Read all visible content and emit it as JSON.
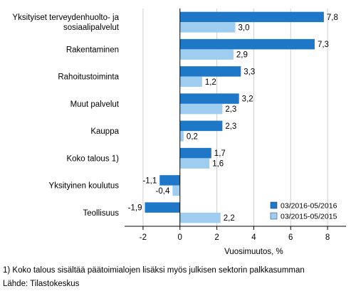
{
  "chart_data": {
    "type": "bar",
    "orientation": "horizontal",
    "categories": [
      "Yksityiset terveydenhuolto- ja sosiaalipalvelut",
      "Rakentaminen",
      "Rahoitustoiminta",
      "Muut palvelut",
      "Kauppa",
      "Koko talous 1)",
      "Yksityinen koulutus",
      "Teollisuus"
    ],
    "category_lines": [
      [
        "Yksityiset terveydenhuolto- ja",
        "sosiaalipalvelut"
      ],
      [
        "Rakentaminen"
      ],
      [
        "Rahoitustoiminta"
      ],
      [
        "Muut palvelut"
      ],
      [
        "Kauppa"
      ],
      [
        "Koko talous 1)"
      ],
      [
        "Yksityinen koulutus"
      ],
      [
        "Teollisuus"
      ]
    ],
    "series": [
      {
        "name": "03/2016-05/2016",
        "color": "#1f77c8",
        "values": [
          7.8,
          7.3,
          3.3,
          3.2,
          2.3,
          1.7,
          -1.1,
          -1.9
        ],
        "labels": [
          "7,8",
          "7,3",
          "3,3",
          "3,2",
          "2,3",
          "1,7",
          "-1,1",
          "-1,9"
        ]
      },
      {
        "name": "03/2015-05/2015",
        "color": "#9fcdf0",
        "values": [
          3.0,
          2.9,
          1.2,
          2.3,
          0.2,
          1.6,
          -0.4,
          2.2
        ],
        "labels": [
          "3,0",
          "2,9",
          "1,2",
          "2,3",
          "0,2",
          "1,6",
          "-0,4",
          "2,2"
        ]
      }
    ],
    "xlabel": "Vuosimuutos, %",
    "xlim": [
      -3,
      9
    ],
    "xticks": [
      -2,
      0,
      2,
      4,
      6,
      8
    ],
    "xtick_labels": [
      "-2",
      "0",
      "2",
      "4",
      "6",
      "8"
    ],
    "grid": true,
    "legend_position": "bottom-right"
  },
  "footnotes": {
    "note": "1) Koko talous sisältää päätoimialojen lisäksi myös julkisen sektorin palkkasumman",
    "source": "Lähde: Tilastokeskus"
  },
  "colors": {
    "grid": "#cfcfcf",
    "axis": "#000000"
  }
}
